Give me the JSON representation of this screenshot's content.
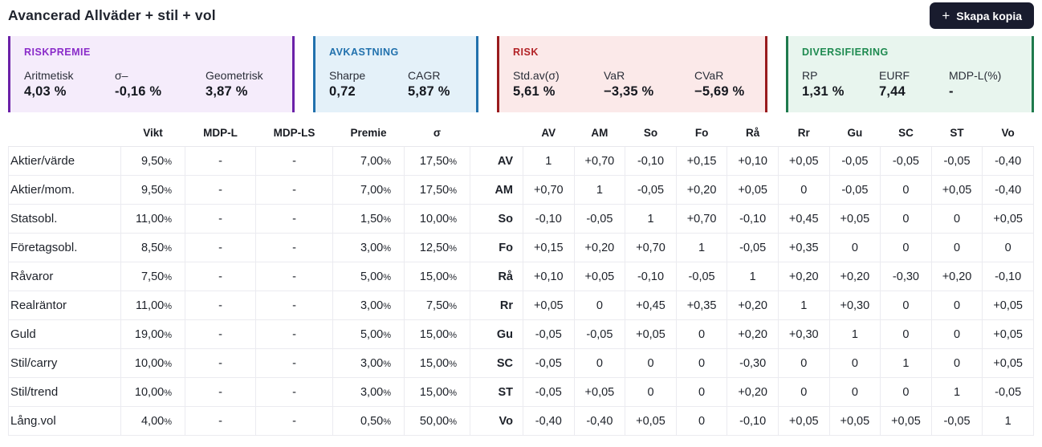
{
  "header": {
    "title": "Avancerad Allväder + stil + vol",
    "copy_button": {
      "icon": "+",
      "label": "Skapa kopia",
      "bg": "#191c2e",
      "text_color": "#ffffff"
    }
  },
  "cards": [
    {
      "title": "RISKPREMIE",
      "accent": "#6b21a8",
      "bg": "#f5ecfb",
      "title_color": "#8a2bc9",
      "metrics": [
        {
          "label": "Aritmetisk",
          "value": "4,03 %"
        },
        {
          "label": "σ–",
          "value": "-0,16 %"
        },
        {
          "label": "Geometrisk",
          "value": "3,87 %"
        }
      ]
    },
    {
      "title": "AVKASTNING",
      "accent": "#2271ad",
      "bg": "#e4f1f9",
      "title_color": "#2171ad",
      "metrics": [
        {
          "label": "Sharpe",
          "value": "0,72"
        },
        {
          "label": "CAGR",
          "value": "5,87 %"
        }
      ]
    },
    {
      "title": "RISK",
      "accent": "#991b1e",
      "bg": "#fbe9e9",
      "title_color": "#b22226",
      "metrics": [
        {
          "label": "Std.av(σ)",
          "value": "5,61 %"
        },
        {
          "label": "VaR",
          "value": "−3,35 %"
        },
        {
          "label": "CVaR",
          "value": "−5,69 %"
        }
      ]
    },
    {
      "title": "DIVERSIFIERING",
      "accent": "#1f7a4d",
      "bg": "#e8f5ee",
      "title_color": "#1e8a50",
      "metrics": [
        {
          "label": "RP",
          "value": "1,31 %"
        },
        {
          "label": "EURF",
          "value": "7,44"
        },
        {
          "label": "MDP-L(%)",
          "value": "-"
        }
      ]
    }
  ],
  "table": {
    "columns": [
      "",
      "Vikt",
      "MDP-L",
      "MDP-LS",
      "Premie",
      "σ",
      "",
      "AV",
      "AM",
      "So",
      "Fo",
      "Rå",
      "Rr",
      "Gu",
      "SC",
      "ST",
      "Vo"
    ],
    "rows": [
      {
        "name": "Aktier/värde",
        "vikt": "9,50%",
        "mdp_l": "-",
        "mdp_ls": "-",
        "premie": "7,00%",
        "sigma": "17,50%",
        "code": "AV",
        "corr": [
          "1",
          "+0,70",
          "-0,10",
          "+0,15",
          "+0,10",
          "+0,05",
          "-0,05",
          "-0,05",
          "-0,05",
          "-0,40"
        ]
      },
      {
        "name": "Aktier/mom.",
        "vikt": "9,50%",
        "mdp_l": "-",
        "mdp_ls": "-",
        "premie": "7,00%",
        "sigma": "17,50%",
        "code": "AM",
        "corr": [
          "+0,70",
          "1",
          "-0,05",
          "+0,20",
          "+0,05",
          "0",
          "-0,05",
          "0",
          "+0,05",
          "-0,40"
        ]
      },
      {
        "name": "Statsobl.",
        "vikt": "11,00%",
        "mdp_l": "-",
        "mdp_ls": "-",
        "premie": "1,50%",
        "sigma": "10,00%",
        "code": "So",
        "corr": [
          "-0,10",
          "-0,05",
          "1",
          "+0,70",
          "-0,10",
          "+0,45",
          "+0,05",
          "0",
          "0",
          "+0,05"
        ]
      },
      {
        "name": "Företagsobl.",
        "vikt": "8,50%",
        "mdp_l": "-",
        "mdp_ls": "-",
        "premie": "3,00%",
        "sigma": "12,50%",
        "code": "Fo",
        "corr": [
          "+0,15",
          "+0,20",
          "+0,70",
          "1",
          "-0,05",
          "+0,35",
          "0",
          "0",
          "0",
          "0"
        ]
      },
      {
        "name": "Råvaror",
        "vikt": "7,50%",
        "mdp_l": "-",
        "mdp_ls": "-",
        "premie": "5,00%",
        "sigma": "15,00%",
        "code": "Rå",
        "corr": [
          "+0,10",
          "+0,05",
          "-0,10",
          "-0,05",
          "1",
          "+0,20",
          "+0,20",
          "-0,30",
          "+0,20",
          "-0,10"
        ]
      },
      {
        "name": "Realräntor",
        "vikt": "11,00%",
        "mdp_l": "-",
        "mdp_ls": "-",
        "premie": "3,00%",
        "sigma": "7,50%",
        "code": "Rr",
        "corr": [
          "+0,05",
          "0",
          "+0,45",
          "+0,35",
          "+0,20",
          "1",
          "+0,30",
          "0",
          "0",
          "+0,05"
        ]
      },
      {
        "name": "Guld",
        "vikt": "19,00%",
        "mdp_l": "-",
        "mdp_ls": "-",
        "premie": "5,00%",
        "sigma": "15,00%",
        "code": "Gu",
        "corr": [
          "-0,05",
          "-0,05",
          "+0,05",
          "0",
          "+0,20",
          "+0,30",
          "1",
          "0",
          "0",
          "+0,05"
        ]
      },
      {
        "name": "Stil/carry",
        "vikt": "10,00%",
        "mdp_l": "-",
        "mdp_ls": "-",
        "premie": "3,00%",
        "sigma": "15,00%",
        "code": "SC",
        "corr": [
          "-0,05",
          "0",
          "0",
          "0",
          "-0,30",
          "0",
          "0",
          "1",
          "0",
          "+0,05"
        ]
      },
      {
        "name": "Stil/trend",
        "vikt": "10,00%",
        "mdp_l": "-",
        "mdp_ls": "-",
        "premie": "3,00%",
        "sigma": "15,00%",
        "code": "ST",
        "corr": [
          "-0,05",
          "+0,05",
          "0",
          "0",
          "+0,20",
          "0",
          "0",
          "0",
          "1",
          "-0,05"
        ]
      },
      {
        "name": "Lång.vol",
        "vikt": "4,00%",
        "mdp_l": "-",
        "mdp_ls": "-",
        "premie": "0,50%",
        "sigma": "50,00%",
        "code": "Vo",
        "corr": [
          "-0,40",
          "-0,40",
          "+0,05",
          "0",
          "-0,10",
          "+0,05",
          "+0,05",
          "+0,05",
          "-0,05",
          "1"
        ]
      }
    ]
  }
}
